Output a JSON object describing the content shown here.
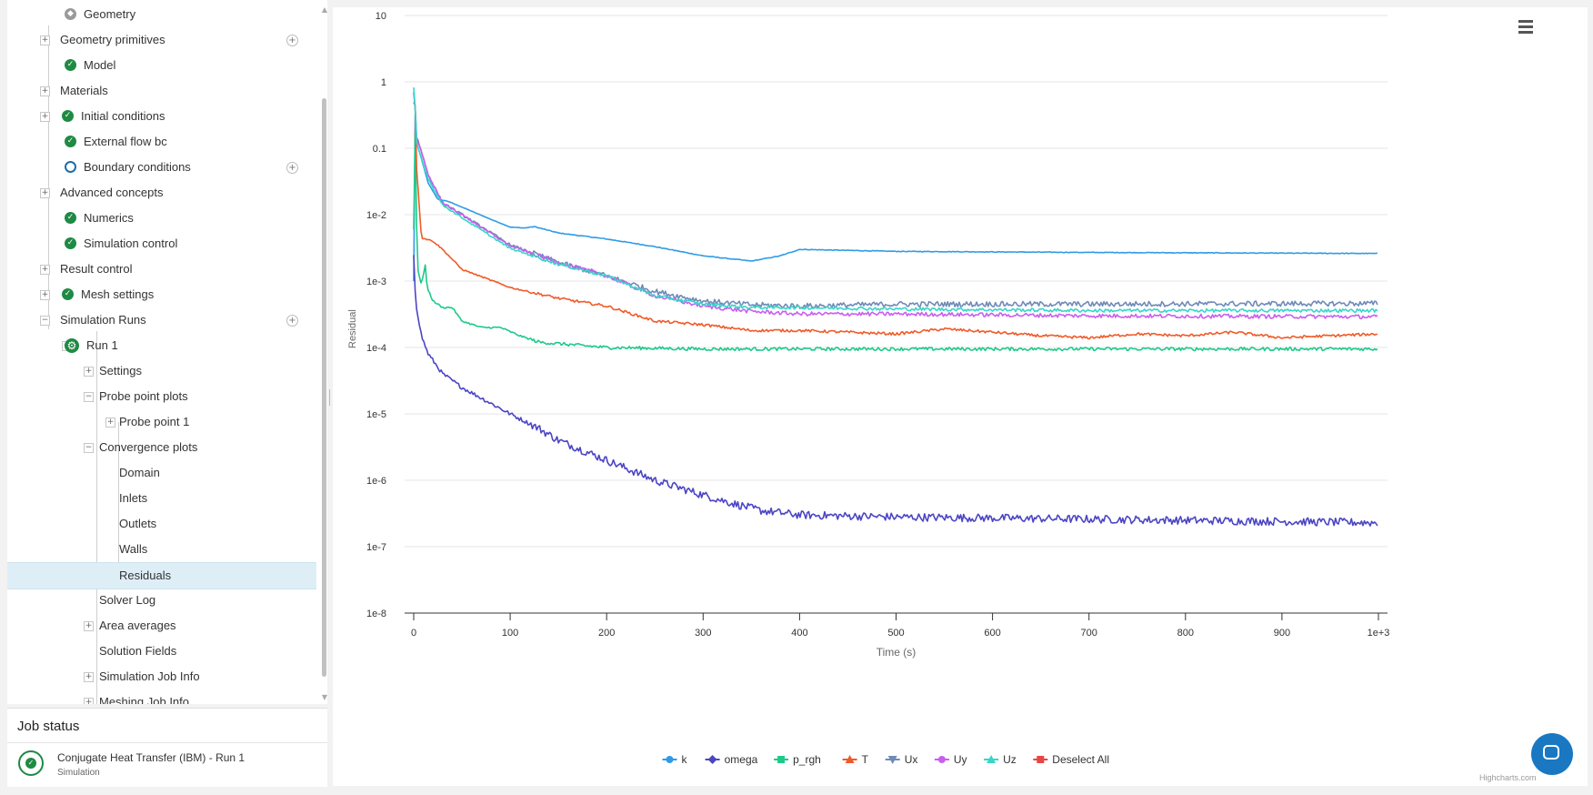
{
  "tree": {
    "items": [
      {
        "label": "Geometry",
        "status": "geometry-icon"
      },
      {
        "label": "Geometry primitives",
        "status": "none",
        "add": true
      },
      {
        "label": "Model",
        "status": "check"
      },
      {
        "label": "Materials",
        "status": "none"
      },
      {
        "label": "Initial conditions",
        "status": "check"
      },
      {
        "label": "External flow bc",
        "status": "check"
      },
      {
        "label": "Boundary conditions",
        "status": "ring",
        "add": true
      },
      {
        "label": "Advanced concepts",
        "status": "none"
      },
      {
        "label": "Numerics",
        "status": "check"
      },
      {
        "label": "Simulation control",
        "status": "check"
      },
      {
        "label": "Result control",
        "status": "none"
      },
      {
        "label": "Mesh settings",
        "status": "check"
      },
      {
        "label": "Simulation Runs",
        "status": "none",
        "add": true
      },
      {
        "label": "Run 1",
        "status": "gear"
      },
      {
        "label": "Settings",
        "status": "none"
      },
      {
        "label": "Probe point plots",
        "status": "none"
      },
      {
        "label": "Probe point 1",
        "status": "none"
      },
      {
        "label": "Convergence plots",
        "status": "none"
      },
      {
        "label": "Domain",
        "status": "none"
      },
      {
        "label": "Inlets",
        "status": "none"
      },
      {
        "label": "Outlets",
        "status": "none"
      },
      {
        "label": "Walls",
        "status": "none"
      },
      {
        "label": "Residuals",
        "status": "none",
        "selected": true
      },
      {
        "label": "Solver Log",
        "status": "none"
      },
      {
        "label": "Area averages",
        "status": "none"
      },
      {
        "label": "Solution Fields",
        "status": "none"
      },
      {
        "label": "Simulation Job Info",
        "status": "none"
      },
      {
        "label": "Meshing Job Info",
        "status": "none"
      }
    ]
  },
  "job_status": {
    "title": "Job status",
    "job_name": "Conjugate Heat Transfer (IBM) - Run 1",
    "job_type": "Simulation",
    "status_icon": "success-check-icon"
  },
  "chart_data": {
    "type": "line",
    "xlabel": "Time (s)",
    "ylabel": "Residual",
    "y_scale": "log",
    "xlim": [
      0,
      1000
    ],
    "ylim": [
      1e-08,
      10
    ],
    "x_tick_labels": [
      "0",
      "100",
      "200",
      "300",
      "400",
      "500",
      "600",
      "700",
      "800",
      "900",
      "1e+3"
    ],
    "y_tick_labels": [
      "10",
      "1",
      "0.1",
      "1e-2",
      "1e-3",
      "1e-4",
      "1e-5",
      "1e-6",
      "1e-7",
      "1e-8"
    ],
    "grid": true,
    "legend_position": "bottom-center",
    "legend_extra_item": "Deselect All",
    "credits": "Highcharts.com",
    "series": [
      {
        "name": "k",
        "color": "#2f9be6",
        "marker": "circle",
        "noise": 0.01,
        "points": [
          [
            0,
            0.001
          ],
          [
            1,
            0.45
          ],
          [
            3,
            0.12
          ],
          [
            8,
            0.07
          ],
          [
            15,
            0.03
          ],
          [
            25,
            0.017
          ],
          [
            35,
            0.016
          ],
          [
            50,
            0.013
          ],
          [
            80,
            0.0085
          ],
          [
            100,
            0.0065
          ],
          [
            115,
            0.0063
          ],
          [
            125,
            0.0066
          ],
          [
            150,
            0.0053
          ],
          [
            200,
            0.0043
          ],
          [
            250,
            0.0033
          ],
          [
            300,
            0.0024
          ],
          [
            350,
            0.002
          ],
          [
            380,
            0.0024
          ],
          [
            400,
            0.003
          ],
          [
            500,
            0.0028
          ],
          [
            700,
            0.0027
          ],
          [
            1000,
            0.0026
          ]
        ]
      },
      {
        "name": "omega",
        "color": "#4b45c4",
        "marker": "diamond",
        "noise": 0.12,
        "points": [
          [
            0,
            0.0025
          ],
          [
            1,
            0.0009
          ],
          [
            3,
            0.0004
          ],
          [
            8,
            0.00015
          ],
          [
            15,
            8e-05
          ],
          [
            30,
            4e-05
          ],
          [
            50,
            2.5e-05
          ],
          [
            100,
            1e-05
          ],
          [
            130,
            6e-06
          ],
          [
            150,
            4e-06
          ],
          [
            200,
            2e-06
          ],
          [
            250,
            1e-06
          ],
          [
            300,
            6e-07
          ],
          [
            330,
            4.5e-07
          ],
          [
            360,
            3.5e-07
          ],
          [
            400,
            3e-07
          ],
          [
            500,
            2.8e-07
          ],
          [
            700,
            2.6e-07
          ],
          [
            1000,
            2.3e-07
          ]
        ]
      },
      {
        "name": "p_rgh",
        "color": "#1ec98a",
        "marker": "square",
        "noise": 0.05,
        "points": [
          [
            0,
            0.006
          ],
          [
            1,
            0.9
          ],
          [
            2,
            0.03
          ],
          [
            4,
            0.0015
          ],
          [
            8,
            0.0009
          ],
          [
            12,
            0.0017
          ],
          [
            14,
            0.0008
          ],
          [
            20,
            0.0005
          ],
          [
            30,
            0.0004
          ],
          [
            40,
            0.0004
          ],
          [
            50,
            0.00025
          ],
          [
            70,
            0.0002
          ],
          [
            90,
            0.0002
          ],
          [
            110,
            0.00015
          ],
          [
            130,
            0.00012
          ],
          [
            200,
            0.0001
          ],
          [
            300,
            9.5e-05
          ],
          [
            1000,
            9.5e-05
          ]
        ]
      },
      {
        "name": "T",
        "color": "#f05a28",
        "marker": "triangle",
        "noise": 0.04,
        "points": [
          [
            0,
            0.5
          ],
          [
            1,
            0.9
          ],
          [
            3,
            0.05
          ],
          [
            8,
            0.0045
          ],
          [
            20,
            0.004
          ],
          [
            30,
            0.003
          ],
          [
            50,
            0.0015
          ],
          [
            100,
            0.0008
          ],
          [
            150,
            0.00055
          ],
          [
            200,
            0.00042
          ],
          [
            250,
            0.00025
          ],
          [
            300,
            0.00022
          ],
          [
            350,
            0.00018
          ],
          [
            400,
            0.00018
          ],
          [
            450,
            0.00017
          ],
          [
            500,
            0.00016
          ],
          [
            550,
            0.00019
          ],
          [
            600,
            0.00017
          ],
          [
            650,
            0.00015
          ],
          [
            700,
            0.00014
          ],
          [
            750,
            0.00016
          ],
          [
            800,
            0.00015
          ],
          [
            850,
            0.00017
          ],
          [
            900,
            0.00014
          ],
          [
            950,
            0.00015
          ],
          [
            1000,
            0.00016
          ]
        ]
      },
      {
        "name": "Ux",
        "color": "#6f8ab8",
        "marker": "triangle-down",
        "noise": 0.08,
        "points": [
          [
            0,
            0.7
          ],
          [
            1,
            0.6
          ],
          [
            3,
            0.15
          ],
          [
            8,
            0.09
          ],
          [
            15,
            0.04
          ],
          [
            30,
            0.015
          ],
          [
            50,
            0.01
          ],
          [
            100,
            0.0035
          ],
          [
            150,
            0.0019
          ],
          [
            200,
            0.0012
          ],
          [
            250,
            0.0007
          ],
          [
            300,
            0.0005
          ],
          [
            350,
            0.00044
          ],
          [
            400,
            0.00042
          ],
          [
            500,
            0.00045
          ],
          [
            700,
            0.00045
          ],
          [
            1000,
            0.00046
          ]
        ]
      },
      {
        "name": "Uy",
        "color": "#c95ef0",
        "marker": "circle",
        "noise": 0.06,
        "points": [
          [
            0,
            0.7
          ],
          [
            1,
            0.55
          ],
          [
            3,
            0.14
          ],
          [
            8,
            0.09
          ],
          [
            15,
            0.04
          ],
          [
            30,
            0.015
          ],
          [
            50,
            0.01
          ],
          [
            100,
            0.0034
          ],
          [
            150,
            0.0019
          ],
          [
            200,
            0.0012
          ],
          [
            250,
            0.0006
          ],
          [
            300,
            0.00042
          ],
          [
            350,
            0.00035
          ],
          [
            400,
            0.00032
          ],
          [
            500,
            0.00032
          ],
          [
            700,
            0.0003
          ],
          [
            1000,
            0.00029
          ]
        ]
      },
      {
        "name": "Uz",
        "color": "#36d6c8",
        "marker": "triangle",
        "noise": 0.05,
        "points": [
          [
            0,
            0.8
          ],
          [
            1,
            0.6
          ],
          [
            3,
            0.12
          ],
          [
            8,
            0.07
          ],
          [
            15,
            0.035
          ],
          [
            30,
            0.014
          ],
          [
            50,
            0.009
          ],
          [
            100,
            0.0031
          ],
          [
            150,
            0.0018
          ],
          [
            200,
            0.0012
          ],
          [
            250,
            0.0006
          ],
          [
            300,
            0.00045
          ],
          [
            350,
            0.0004
          ],
          [
            400,
            0.0004
          ],
          [
            500,
            0.00038
          ],
          [
            700,
            0.00036
          ],
          [
            1000,
            0.00036
          ]
        ]
      }
    ]
  }
}
